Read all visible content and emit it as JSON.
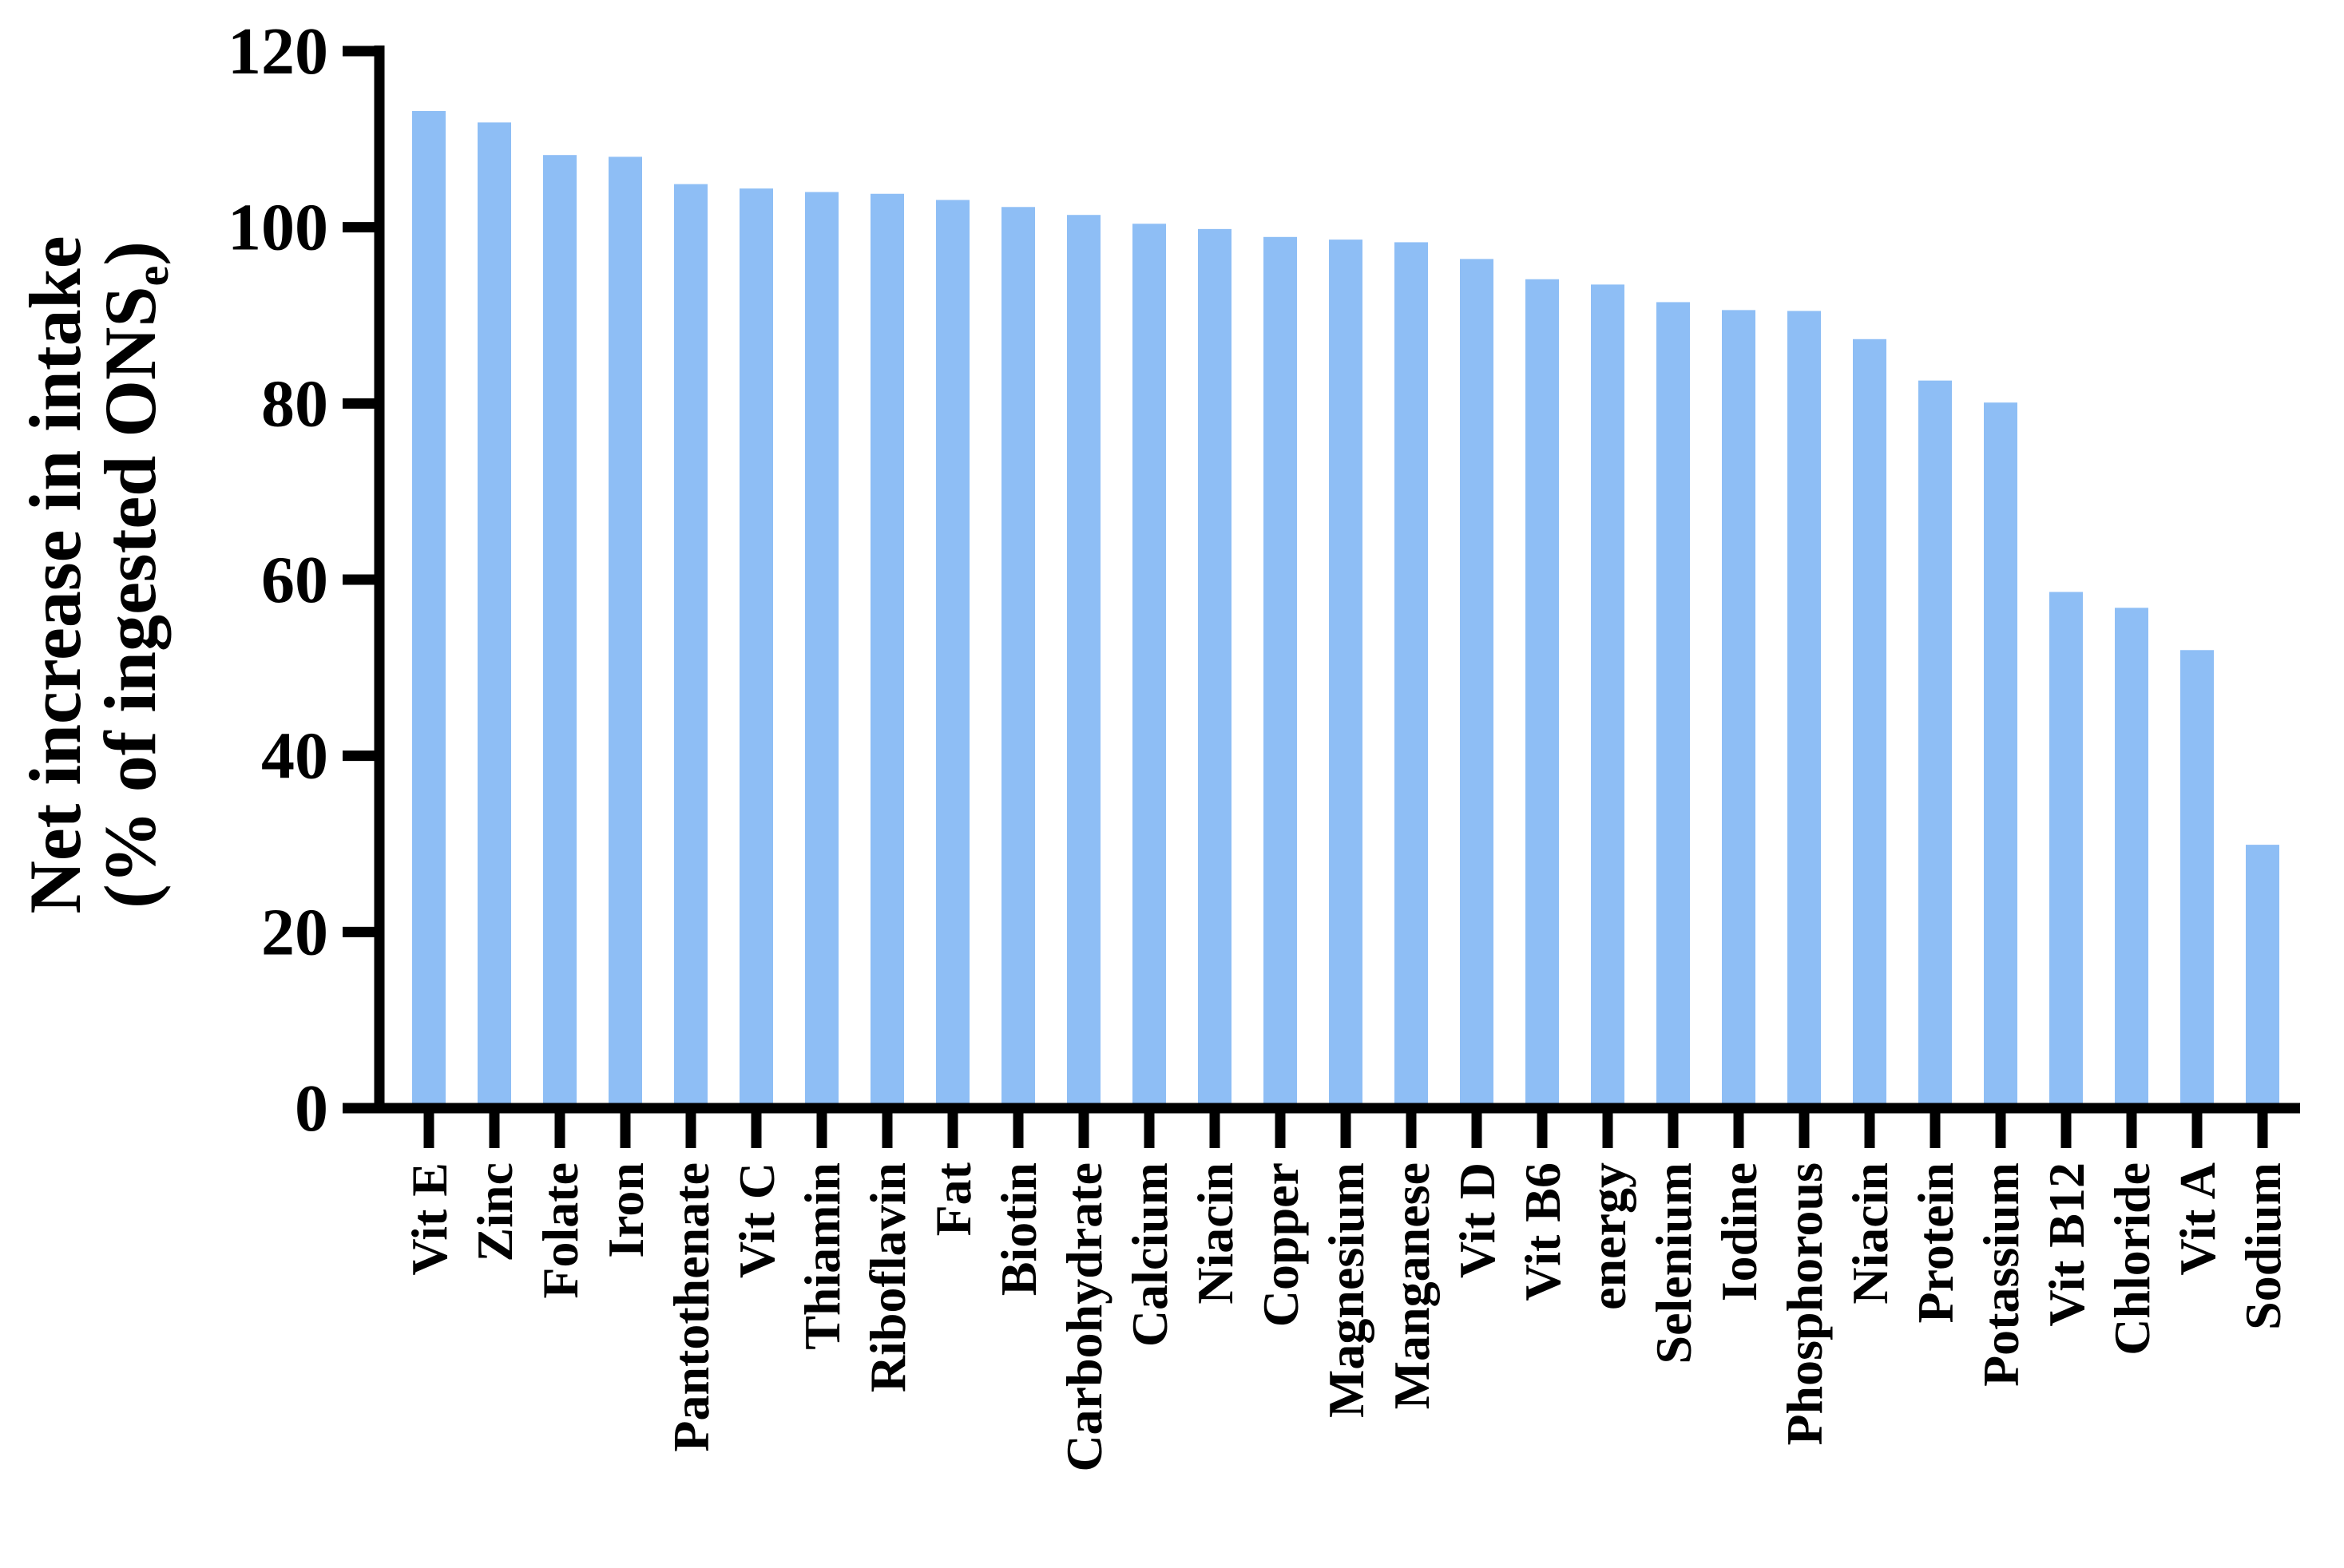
{
  "chart_data": {
    "type": "bar",
    "title": "",
    "xlabel": "",
    "ylabel_line1": "Net increase in intake",
    "ylabel_line2_prefix": "(% of ingested ONS",
    "ylabel_line2_sub": "e",
    "ylabel_line2_suffix": ")",
    "ylim": [
      0,
      120
    ],
    "yticks": [
      0,
      20,
      40,
      60,
      80,
      100,
      120
    ],
    "grid": false,
    "legend": "none",
    "bar_color": "#8EBEF5",
    "axis_color": "#000000",
    "text_color": "#000000",
    "background_color": "#FFFFFF",
    "categories": [
      "Vit E",
      "Zinc",
      "Folate",
      "Iron",
      "Pantothenate",
      "Vit C",
      "Thiamin",
      "Riboflavin",
      "Fat",
      "Biotin",
      "Carbohydrate",
      "Calcium",
      "Niacin",
      "Copper",
      "Magnesium",
      "Manganese",
      "Vit D",
      "Vit B6",
      "energy",
      "Selenium",
      "Iodine",
      "Phosphorous",
      "Niacin",
      "Protein",
      "Potassium",
      "Vit B12",
      "Chloride",
      "Vit A",
      "Sodium"
    ],
    "values": [
      113.2,
      111.9,
      108.2,
      108.0,
      104.9,
      104.4,
      104.0,
      103.8,
      103.1,
      102.3,
      101.4,
      100.4,
      99.8,
      98.9,
      98.6,
      98.3,
      96.4,
      94.1,
      93.5,
      91.5,
      90.6,
      90.5,
      87.3,
      82.6,
      80.1,
      58.6,
      56.8,
      52.0,
      29.9
    ]
  }
}
